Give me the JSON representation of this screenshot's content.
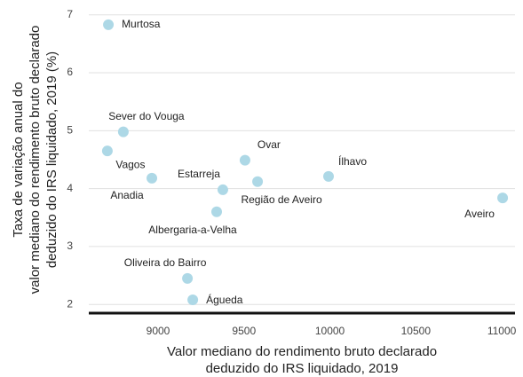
{
  "chart_data": {
    "type": "scatter",
    "x_label": [
      "Valor mediano do rendimento bruto declarado",
      "deduzido do IRS liquidado, 2019"
    ],
    "y_label": [
      "Taxa de variação anual do",
      "valor mediano do rendimento bruto declarado",
      "deduzido do IRS liquidado, 2019 (%)"
    ],
    "color": "#add8e6",
    "labels": [
      "Murtosa",
      "Sever do Vouga",
      "Vagos",
      "Anadia",
      "Estarreja",
      "Ovar",
      "Região de Aveiro",
      "Ílhavo",
      "Aveiro",
      "Albergaria-a-Velha",
      "Oliveira do Bairro",
      "Águeda"
    ],
    "x": [
      8711,
      8798,
      8705,
      8964,
      9377,
      9506,
      9579,
      9992,
      11005,
      9341,
      9171,
      9202
    ],
    "values": [
      6.83,
      4.98,
      4.65,
      4.18,
      3.98,
      4.49,
      4.12,
      4.21,
      3.84,
      3.6,
      2.45,
      2.08
    ],
    "xlim": [
      8597,
      11077
    ],
    "ylim": [
      1.85,
      7.18
    ],
    "xticks": [
      9000,
      9500,
      10000,
      10500,
      11000
    ],
    "yticks": [
      2,
      3,
      4,
      5,
      6,
      7
    ],
    "grid": true
  }
}
